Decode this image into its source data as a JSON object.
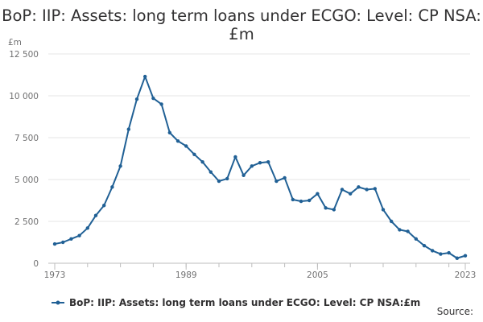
{
  "title": "BoP: IIP: Assets: long term loans under ECGO: Level: CP NSA:£m",
  "source_label": "Source:",
  "colors": {
    "series": "#206095",
    "grid": "#e5e5e5",
    "axis": "#bdbdbd"
  },
  "chart_data": {
    "type": "line",
    "title": "BoP: IIP: Assets: long term loans under ECGO: Level: CP NSA:£m",
    "ylabel": "£m",
    "xlabel": "",
    "ylim": [
      0,
      12500
    ],
    "xlim": [
      1973,
      2023
    ],
    "yticks": [
      0,
      2500,
      5000,
      7500,
      10000,
      12500
    ],
    "ytick_labels": [
      "0",
      "2 500",
      "5 000",
      "7 500",
      "10 000",
      "12 500"
    ],
    "xticks": [
      1973,
      1989,
      2005,
      2023
    ],
    "xtick_labels": [
      "1973",
      "1989",
      "2005",
      "2023"
    ],
    "grid": true,
    "legend_position": "bottom",
    "series": [
      {
        "name": "BoP: IIP: Assets: long term loans under ECGO: Level: CP NSA:£m",
        "x": [
          1973,
          1974,
          1975,
          1976,
          1977,
          1978,
          1979,
          1980,
          1981,
          1982,
          1983,
          1984,
          1985,
          1986,
          1987,
          1988,
          1989,
          1990,
          1991,
          1992,
          1993,
          1994,
          1995,
          1996,
          1997,
          1998,
          1999,
          2000,
          2001,
          2002,
          2003,
          2004,
          2005,
          2006,
          2007,
          2008,
          2009,
          2010,
          2011,
          2012,
          2013,
          2014,
          2015,
          2016,
          2017,
          2018,
          2019,
          2020,
          2021,
          2022,
          2023
        ],
        "values": [
          1150,
          1250,
          1450,
          1650,
          2100,
          2850,
          3450,
          4550,
          5800,
          8000,
          9800,
          11150,
          9850,
          9500,
          7800,
          7300,
          7000,
          6500,
          6050,
          5450,
          4900,
          5050,
          6350,
          5250,
          5800,
          6000,
          6050,
          4900,
          5100,
          3800,
          3700,
          3750,
          4150,
          3300,
          3200,
          4400,
          4150,
          4550,
          4400,
          4450,
          3200,
          2500,
          2000,
          1900,
          1450,
          1050,
          750,
          550,
          620,
          300,
          450
        ]
      }
    ]
  }
}
